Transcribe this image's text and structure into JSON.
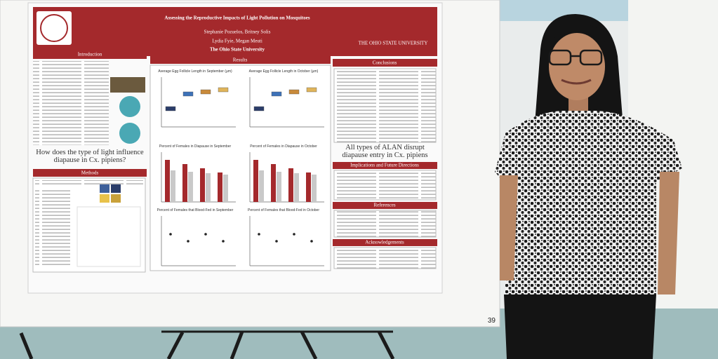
{
  "poster": {
    "title": "Assessing the Reproductive Impacts of Light Pollution on Mosquitoes",
    "authors": [
      "Stephanie Pozuelos, Britney Solis",
      "Lydia Fyie, Megan Meuti"
    ],
    "affiliation": "The Ohio State University",
    "university_logo": "THE OHIO STATE UNIVERSITY",
    "sections": {
      "introduction": "Introduction",
      "methods": "Methods",
      "results": "Results",
      "conclusions": "Conclusions",
      "implications": "Implications and Future Directions",
      "references": "References",
      "acknowledgements": "Acknowledgements"
    },
    "question": "How does the type of light influence diapause in Cx. pipiens?",
    "takeaway": "All types of ALAN disrupt diapause entry in Cx. pipiens",
    "figures": [
      "Average Egg Follicle Length in September (µm)",
      "Average Egg Follicle Length in October (µm)",
      "Percent of Females in Diapause in September",
      "Percent of Females in Diapause in October",
      "Percent of Females that Blood-Fed in September",
      "Percent of Females that Blood-Fed in October"
    ]
  },
  "board_number": "39"
}
